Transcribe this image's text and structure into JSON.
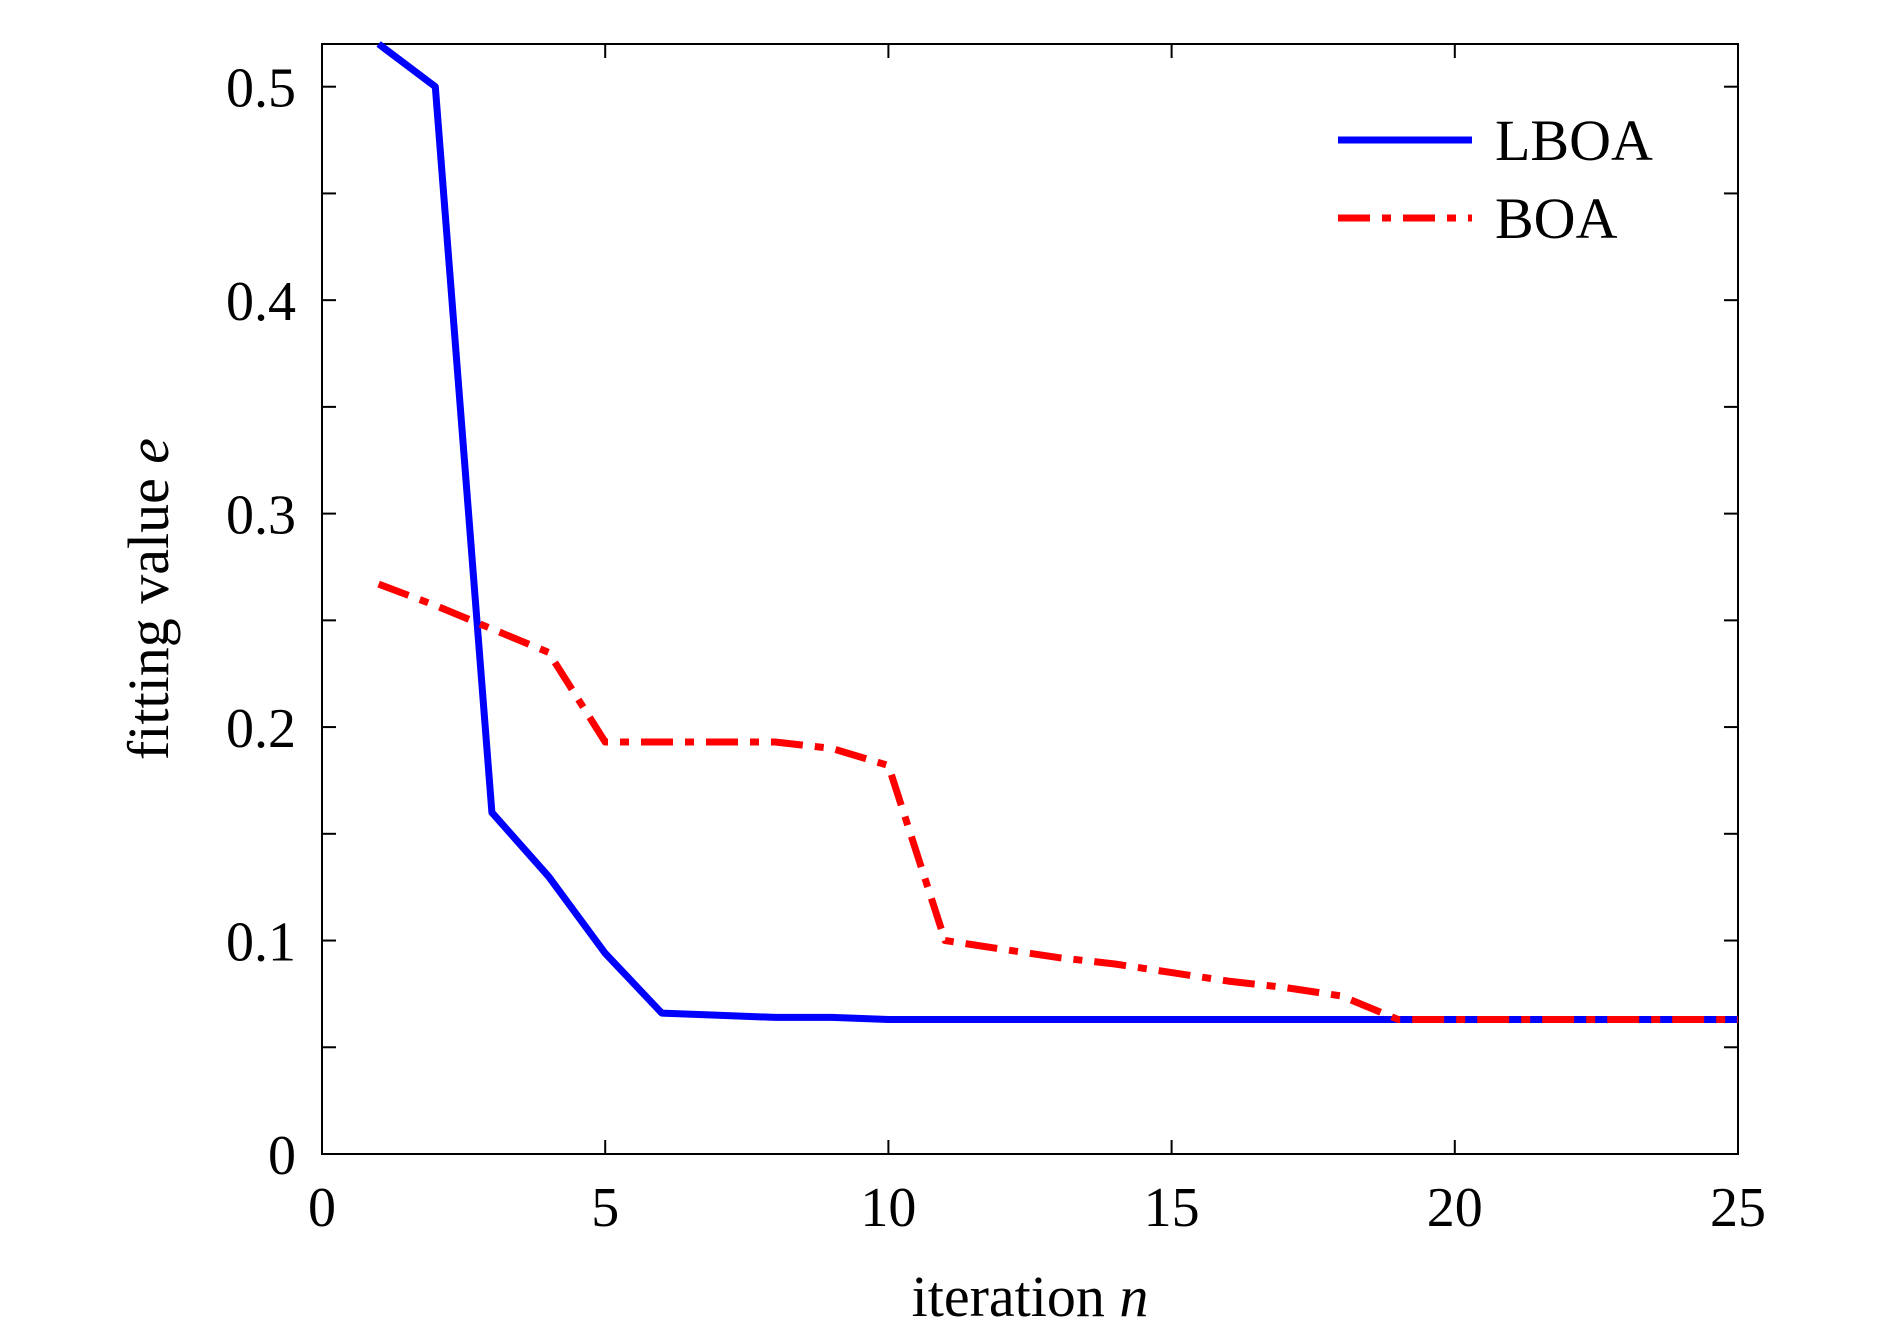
{
  "chart_data": {
    "type": "line",
    "xlabel": {
      "text": "iteration",
      "var": "n"
    },
    "ylabel": {
      "text": "fitting value",
      "var": "e"
    },
    "xlim": [
      0,
      25
    ],
    "ylim": [
      0,
      0.52
    ],
    "xticks": [
      0,
      5,
      10,
      15,
      20,
      25
    ],
    "xtick_labels": [
      "0",
      "5",
      "10",
      "15",
      "20",
      "25"
    ],
    "yticks": [
      0,
      0.1,
      0.2,
      0.3,
      0.4,
      0.5
    ],
    "ytick_labels": [
      "0",
      "0.1",
      "0.2",
      "0.3",
      "0.4",
      "0.5"
    ],
    "grid": false,
    "legend_position": "top-right",
    "series": [
      {
        "name": "LBOA",
        "color": "#0000ff",
        "style": "solid",
        "x": [
          1,
          2,
          3,
          4,
          5,
          6,
          7,
          8,
          9,
          10,
          11,
          12,
          13,
          14,
          15,
          16,
          17,
          18,
          19,
          20,
          21,
          22,
          23,
          24,
          25
        ],
        "values": [
          0.52,
          0.5,
          0.16,
          0.13,
          0.094,
          0.066,
          0.065,
          0.064,
          0.064,
          0.063,
          0.063,
          0.063,
          0.063,
          0.063,
          0.063,
          0.063,
          0.063,
          0.063,
          0.063,
          0.063,
          0.063,
          0.063,
          0.063,
          0.063,
          0.063
        ]
      },
      {
        "name": "BOA",
        "color": "#ff0000",
        "style": "dashdot",
        "x": [
          1,
          2,
          3,
          4,
          5,
          6,
          7,
          8,
          9,
          10,
          11,
          12,
          13,
          14,
          15,
          16,
          17,
          18,
          19,
          20,
          21,
          22,
          23,
          24,
          25
        ],
        "values": [
          0.267,
          0.257,
          0.246,
          0.235,
          0.193,
          0.193,
          0.193,
          0.193,
          0.19,
          0.182,
          0.1,
          0.096,
          0.092,
          0.089,
          0.085,
          0.081,
          0.078,
          0.074,
          0.063,
          0.063,
          0.063,
          0.063,
          0.063,
          0.063,
          0.063
        ]
      }
    ]
  }
}
